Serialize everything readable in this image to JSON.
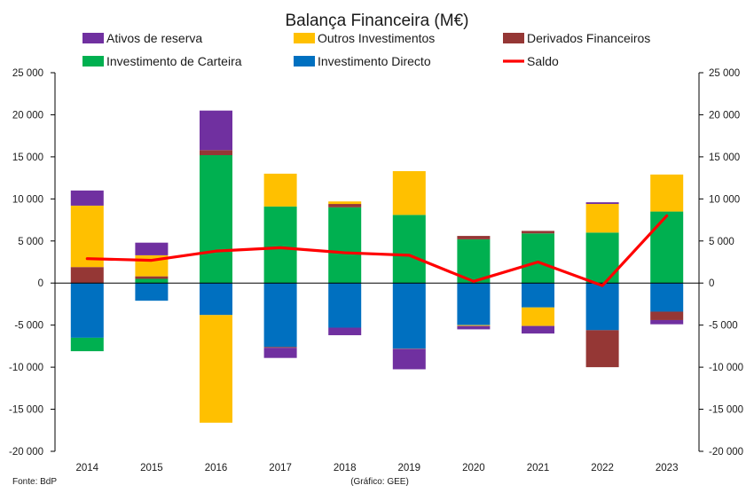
{
  "chart_data": {
    "type": "bar",
    "stacked": true,
    "title": "Balança Financeira (M€)",
    "categories": [
      "2014",
      "2015",
      "2016",
      "2017",
      "2018",
      "2019",
      "2020",
      "2021",
      "2022",
      "2023"
    ],
    "ylim": [
      -20000,
      25000
    ],
    "yticks": [
      25000,
      20000,
      15000,
      10000,
      5000,
      0,
      -5000,
      -10000,
      -15000,
      -20000
    ],
    "ytick_labels": [
      "25 000",
      "20 000",
      "15 000",
      "10 000",
      "5 000",
      "0",
      "-5 000",
      "-10 000",
      "-15 000",
      "-20 000"
    ],
    "grid": false,
    "legend_position": "top",
    "series": [
      {
        "name": "Investimento Directo",
        "color": "#0070C0",
        "values": [
          -6500,
          -2100,
          -3800,
          -7600,
          -5300,
          -7800,
          -5000,
          -2900,
          -5600,
          -3400
        ]
      },
      {
        "name": "Investimento de Carteira",
        "color": "#00B050",
        "values": [
          -1600,
          500,
          15200,
          9100,
          9000,
          8100,
          5200,
          5900,
          6000,
          8500
        ]
      },
      {
        "name": "Derivados Financeiros",
        "color": "#953735",
        "values": [
          1900,
          300,
          600,
          -100,
          400,
          -50,
          400,
          300,
          -4400,
          -1000
        ]
      },
      {
        "name": "Outros Investimentos",
        "color": "#FFC000",
        "values": [
          7300,
          2500,
          -12800,
          3900,
          300,
          5200,
          -100,
          -2200,
          3400,
          4400
        ]
      },
      {
        "name": "Ativos de reserva",
        "color": "#7030A0",
        "values": [
          1800,
          1500,
          4700,
          -1200,
          -900,
          -2400,
          -400,
          -900,
          200,
          -500
        ]
      }
    ],
    "line": {
      "name": "Saldo",
      "color": "#FF0000",
      "values": [
        2900,
        2700,
        3800,
        4200,
        3600,
        3300,
        200,
        2500,
        -300,
        8000
      ]
    },
    "legend_order": [
      "Ativos de reserva",
      "Outros Investimentos",
      "Derivados Financeiros",
      "Investimento de Carteira",
      "Investimento Directo",
      "Saldo"
    ],
    "source": "Fonte: BdP",
    "credit": "(Gráfico: GEE)"
  }
}
